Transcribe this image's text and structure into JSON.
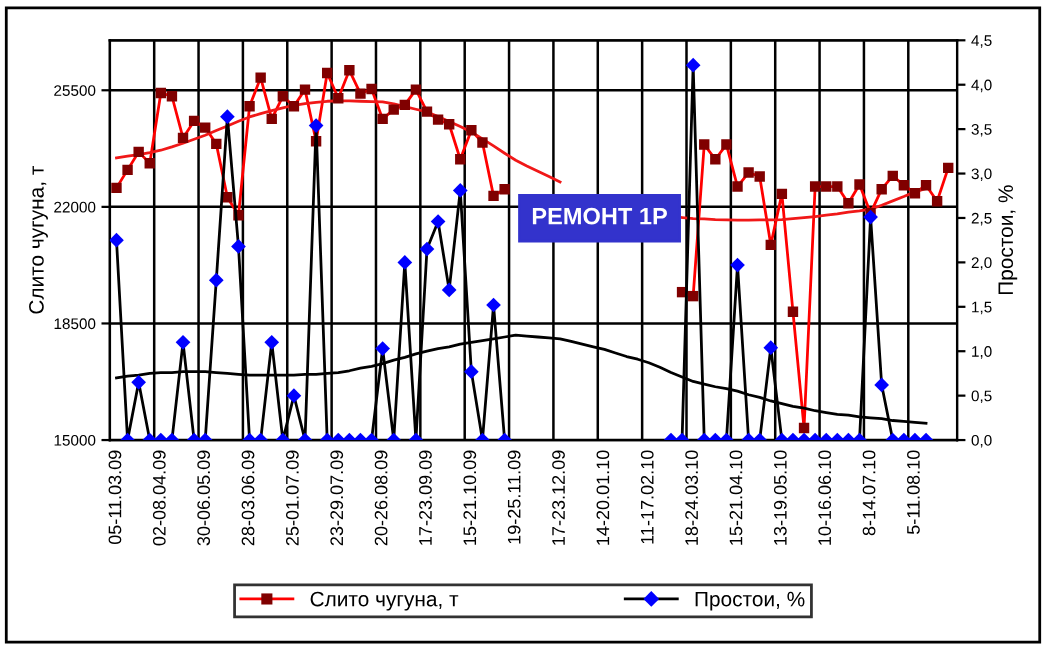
{
  "chart_data": {
    "type": "line",
    "ylabel": "Слито чугуна, т",
    "y2label": "Простои, %",
    "categories": [
      "05-11.03.09",
      null,
      null,
      null,
      "02-08.04.09",
      null,
      null,
      null,
      "30-06.05.09",
      null,
      null,
      null,
      "28-03.06.09",
      null,
      null,
      null,
      "25-01.07.09",
      null,
      null,
      null,
      "23-29.07.09",
      null,
      null,
      null,
      "20-26.08.09",
      null,
      null,
      null,
      "17-23.09.09",
      null,
      null,
      null,
      "15-21.10.09",
      null,
      null,
      null,
      "19-25.11.09",
      null,
      null,
      null,
      "17-23.12.09",
      null,
      null,
      null,
      "14-20.01.10",
      null,
      null,
      null,
      "11-17.02.10",
      null,
      null,
      null,
      "18-24.03.10",
      null,
      null,
      null,
      "15-21.04.10",
      null,
      null,
      null,
      "13-19.05.10",
      null,
      null,
      null,
      "10-16.06.10",
      null,
      null,
      null,
      "8-14.07.10",
      null,
      null,
      null,
      "5-11.08.10",
      null,
      null,
      null
    ],
    "series": [
      {
        "name": "Слито чугуна, т",
        "color": "#ff0000",
        "marker": "square",
        "colors": [
          "#800000",
          "#800000",
          "#800000",
          "#800000",
          "#800000",
          "#800000",
          "#800000",
          "#800000",
          "#800000",
          "#800000",
          "#800000",
          "#800000",
          "#800000",
          "#800000",
          "#800000",
          "#800000",
          "#800000",
          "#800000",
          "#800000",
          "#800000",
          "#800000",
          "#800000",
          "#800000",
          "#800000",
          "#800000",
          "#800000",
          "#800000",
          "#800000",
          "#800000",
          "#800000",
          "#800000",
          "#800000",
          "#800000",
          "#800000",
          "#800000",
          "#800000",
          "#800000",
          "#800000",
          "#800000",
          "#800000",
          "#800000",
          "#800000",
          "#800000",
          "#800000",
          "#800000",
          "#800000",
          "#800000",
          "#800000",
          "#800000",
          "#800000",
          "#800000",
          "#800000",
          "#800000",
          "#800000",
          "#800000",
          "#800000",
          "#800000",
          "#800000",
          "#800000",
          "#800000",
          "#800000",
          "#800000",
          "#800000",
          "#800000",
          "#800000",
          "#800000",
          "#800000",
          "#800000",
          "#800000",
          "#800000",
          "#800000",
          "#800000",
          "#800000",
          "#800000",
          "#800000",
          "#800000"
        ],
        "values": [
          22570,
          23110,
          23650,
          23310,
          25420,
          25320,
          24070,
          24580,
          24380,
          23890,
          22290,
          21750,
          25020,
          25880,
          24640,
          25320,
          25020,
          25520,
          23970,
          26020,
          25260,
          26100,
          25400,
          25540,
          24640,
          24920,
          25060,
          25520,
          24860,
          24620,
          24480,
          23430,
          24300,
          23930,
          22330,
          22530,
          null,
          null,
          null,
          null,
          null,
          null,
          null,
          null,
          null,
          null,
          null,
          null,
          null,
          null,
          null,
          19440,
          19320,
          23870,
          23430,
          23870,
          22610,
          23030,
          22910,
          20860,
          22390,
          18850,
          15360,
          22610,
          22610,
          22610,
          22110,
          22670,
          21810,
          22530,
          22930,
          22650,
          22410,
          22650,
          22170,
          23170
        ]
      },
      {
        "name": "Простои, %",
        "color": "#000000",
        "marker": "diamond",
        "axis": "y2",
        "colors": [
          "#0000ff",
          "#0000ff",
          "#0000ff",
          "#0000ff",
          "#0000ff",
          "#0000ff",
          "#0000ff",
          "#0000ff",
          "#0000ff",
          "#0000ff",
          "#0000ff",
          "#0000ff",
          "#0000ff",
          "#0000ff",
          "#0000ff",
          "#0000ff",
          "#0000ff",
          "#0000ff",
          "#0000ff",
          "#0000ff",
          "#0000ff",
          "#0000ff",
          "#0000ff",
          "#0000ff",
          "#0000ff",
          "#0000ff",
          "#0000ff",
          "#0000ff",
          "#0000ff",
          "#0000ff",
          "#0000ff",
          "#0000ff",
          "#0000ff",
          "#0000ff",
          "#0000ff",
          "#0000ff",
          "#0000ff",
          "#0000ff",
          "#0000ff",
          "#0000ff",
          "#0000ff",
          "#0000ff",
          "#0000ff",
          "#0000ff",
          "#0000ff",
          "#0000ff",
          "#0000ff",
          "#0000ff",
          "#0000ff",
          "#0000ff",
          "#0000ff",
          "#0000ff",
          "#0000ff",
          "#0000ff",
          "#0000ff",
          "#0000ff",
          "#0000ff",
          "#0000ff",
          "#0000ff",
          "#0000ff",
          "#0000ff",
          "#0000ff",
          "#0000ff",
          "#0000ff",
          "#0000ff",
          "#0000ff",
          "#0000ff",
          "#0000ff",
          "#0000ff",
          "#0000ff",
          "#0000ff",
          "#0000ff",
          "#0000ff",
          "#0000ff",
          "#0000ff",
          "#0000ff"
        ],
        "values": [
          2.25,
          0,
          0.65,
          0,
          0,
          0,
          1.1,
          0,
          0,
          1.8,
          3.64,
          2.18,
          0,
          0,
          1.1,
          0,
          0.5,
          0,
          3.54,
          0,
          0,
          0,
          0,
          0,
          1.03,
          0,
          2.0,
          0,
          2.15,
          2.46,
          1.69,
          2.81,
          0.77,
          0,
          1.52,
          0,
          null,
          null,
          null,
          null,
          null,
          null,
          null,
          null,
          null,
          null,
          null,
          null,
          null,
          null,
          0,
          0,
          4.22,
          0,
          0,
          0,
          1.97,
          0,
          0,
          1.04,
          0,
          0,
          0,
          0,
          0,
          0,
          0,
          0,
          2.51,
          0.62,
          0,
          0,
          0,
          0,
          null,
          null
        ]
      },
      {
        "color": "#f01818",
        "marker": "none",
        "values": [
          23470,
          23520,
          23570,
          23630,
          23700,
          23800,
          23910,
          24030,
          24150,
          24290,
          24430,
          24570,
          24700,
          24800,
          24890,
          24970,
          25050,
          25100,
          25140,
          25170,
          25180,
          25180,
          25170,
          25160,
          25150,
          25090,
          25010,
          24930,
          24850,
          24710,
          24560,
          24410,
          24250,
          24040,
          23830,
          23610,
          23400,
          23230,
          23070,
          22910,
          22750,
          null,
          null,
          null,
          null,
          null,
          null,
          null,
          null,
          null,
          null,
          21680,
          21650,
          21640,
          21620,
          21610,
          21600,
          21600,
          21610,
          21610,
          21620,
          21650,
          21680,
          21710,
          21750,
          21790,
          21840,
          21880,
          21930,
          22050,
          22180,
          22310,
          22450,
          22550,
          null,
          null
        ]
      },
      {
        "color": "#000000",
        "marker": "none",
        "axis": "y2",
        "values": [
          0.7,
          0.72,
          0.73,
          0.75,
          0.76,
          0.76,
          0.77,
          0.77,
          0.77,
          0.76,
          0.75,
          0.74,
          0.73,
          0.73,
          0.73,
          0.73,
          0.73,
          0.74,
          0.74,
          0.75,
          0.76,
          0.78,
          0.81,
          0.83,
          0.86,
          0.9,
          0.93,
          0.97,
          1.0,
          1.03,
          1.05,
          1.08,
          1.1,
          1.12,
          1.14,
          1.16,
          1.18,
          1.17,
          1.16,
          1.15,
          1.14,
          1.11,
          1.08,
          1.05,
          1.02,
          0.98,
          0.94,
          0.91,
          0.87,
          0.82,
          0.76,
          0.71,
          0.66,
          0.63,
          0.6,
          0.58,
          0.55,
          0.51,
          0.48,
          0.44,
          0.41,
          0.38,
          0.36,
          0.33,
          0.31,
          0.29,
          0.28,
          0.26,
          0.25,
          0.24,
          0.22,
          0.21,
          0.2,
          0.19,
          null,
          null
        ]
      }
    ],
    "ylim": [
      15000,
      27000
    ],
    "yticks": [
      15000,
      18500,
      22000,
      25500
    ],
    "y2lim": [
      0,
      4.5
    ],
    "y2ticks": [
      {
        "value": 0,
        "label": "0,0"
      },
      {
        "value": 0.5,
        "label": "0,5"
      },
      {
        "value": 1,
        "label": "1,0"
      },
      {
        "value": 1.5,
        "label": "1,5"
      },
      {
        "value": 2,
        "label": "2,0"
      },
      {
        "value": 2.5,
        "label": "2,5"
      },
      {
        "value": 3,
        "label": "3,0"
      },
      {
        "value": 3.5,
        "label": "3,5"
      },
      {
        "value": 4,
        "label": "4,0"
      },
      {
        "value": 4.5,
        "label": "4,5"
      }
    ],
    "annotations": [
      "РЕМОНТ 1Р"
    ],
    "grid": true,
    "legend": "bottom"
  }
}
